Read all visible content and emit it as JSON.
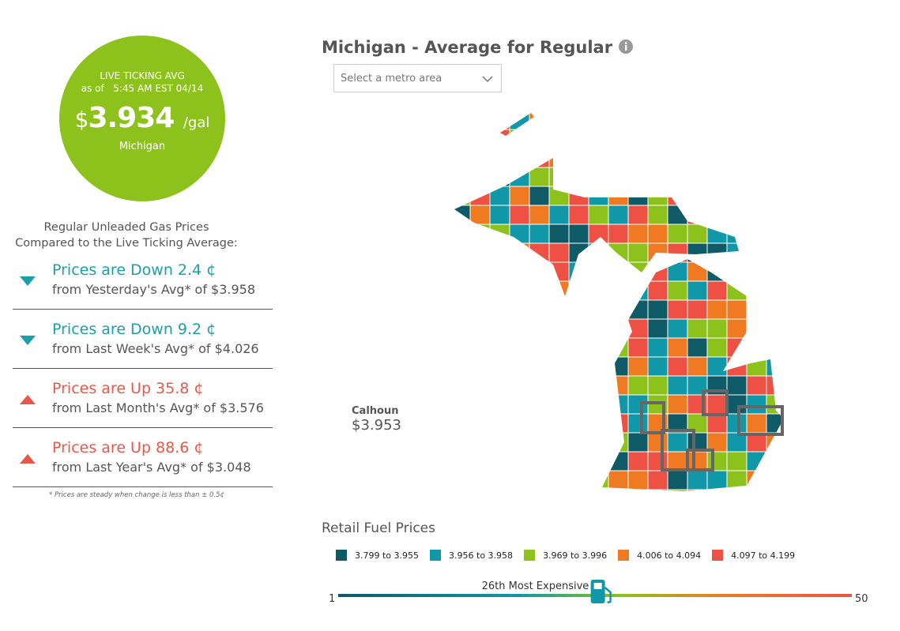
{
  "live_avg": {
    "label": "LIVE TICKING AVG",
    "as_of": "as of",
    "time": "5:45 AM EST 04/14",
    "currency": "$",
    "price": "3.934",
    "unit": "/gal",
    "region": "Michigan"
  },
  "comparison": {
    "heading_1": "Regular Unleaded Gas Prices",
    "heading_2": "Compared to the Live Ticking Average:",
    "items": [
      {
        "direction": "down",
        "headline": "Prices are Down 2.4 ¢",
        "detail": "from Yesterday's Avg* of $3.958"
      },
      {
        "direction": "down",
        "headline": "Prices are Down 9.2 ¢",
        "detail": "from Last Week's Avg* of $4.026"
      },
      {
        "direction": "up",
        "headline": "Prices are Up 35.8 ¢",
        "detail": "from Last Month's Avg* of $3.576"
      },
      {
        "direction": "up",
        "headline": "Prices are Up 88.6 ¢",
        "detail": "from Last Year's Avg* of $3.048"
      }
    ],
    "footnote": "* Prices are steady when change is less than ± 0.5¢"
  },
  "map": {
    "title": "Michigan - Average for Regular",
    "select_placeholder": "Select a metro area",
    "tooltip": {
      "county": "Calhoun",
      "price": "$3.953"
    }
  },
  "legend": {
    "title": "Retail Fuel Prices",
    "items": [
      {
        "label": "3.799 to 3.955",
        "color": "#0e5a66"
      },
      {
        "label": "3.956 to 3.958",
        "color": "#1098a8"
      },
      {
        "label": "3.969 to 3.996",
        "color": "#8cc21b"
      },
      {
        "label": "4.006 to 4.094",
        "color": "#f07a22"
      },
      {
        "label": "4.097 to 4.199",
        "color": "#ee5143"
      }
    ]
  },
  "rank": {
    "label": "26th Most Expensive",
    "position": 26,
    "min": 1,
    "max": 50
  }
}
